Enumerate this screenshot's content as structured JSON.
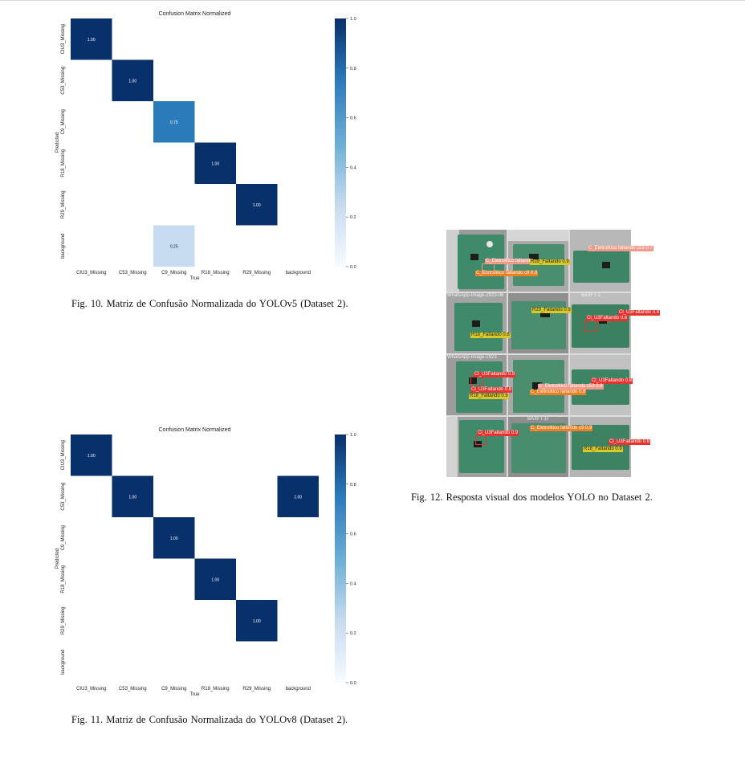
{
  "cm1": {
    "title": "Confusion Matrix Normalized",
    "xlabel": "True",
    "ylabel": "Predicted",
    "row_labels": [
      "CIU3_Missing",
      "C53_Missing",
      "C9_Missing",
      "R18_Missing",
      "R29_Missing",
      "background"
    ],
    "col_labels": [
      "CIU3_Missing",
      "C53_Missing",
      "C9_Missing",
      "R18_Missing",
      "R29_Missing",
      "background"
    ],
    "colorbar_ticks": [
      "0.0",
      "0.2",
      "0.4",
      "0.6",
      "0.8",
      "1.0"
    ],
    "cell_values": [
      {
        "row": 0,
        "col": 0,
        "text": "1.00",
        "value": 1.0
      },
      {
        "row": 1,
        "col": 1,
        "text": "1.00",
        "value": 1.0
      },
      {
        "row": 2,
        "col": 2,
        "text": "0.75",
        "value": 0.75
      },
      {
        "row": 3,
        "col": 3,
        "text": "1.00",
        "value": 1.0
      },
      {
        "row": 4,
        "col": 4,
        "text": "1.00",
        "value": 1.0
      },
      {
        "row": 5,
        "col": 2,
        "text": "0.25",
        "value": 0.25
      }
    ],
    "caption": "Fig. 10.  Matriz de Confusão Normalizada do YOLOv5 (Dataset 2)."
  },
  "cm2": {
    "title": "Confusion Matrix Normalized",
    "xlabel": "True",
    "ylabel": "Predicted",
    "row_labels": [
      "CIU3_Missing",
      "C53_Missing",
      "C9_Missing",
      "R18_Missing",
      "R29_Missing",
      "background"
    ],
    "col_labels": [
      "CIU3_Missing",
      "C53_Missing",
      "C9_Missing",
      "R18_Missing",
      "R29_Missing",
      "background"
    ],
    "colorbar_ticks": [
      "0.0",
      "0.2",
      "0.4",
      "0.6",
      "0.8",
      "1.0"
    ],
    "cell_values": [
      {
        "row": 0,
        "col": 0,
        "text": "1.00",
        "value": 1.0
      },
      {
        "row": 1,
        "col": 1,
        "text": "1.00",
        "value": 1.0
      },
      {
        "row": 1,
        "col": 5,
        "text": "1.00",
        "value": 1.0
      },
      {
        "row": 2,
        "col": 2,
        "text": "1.00",
        "value": 1.0
      },
      {
        "row": 3,
        "col": 3,
        "text": "1.00",
        "value": 1.0
      },
      {
        "row": 4,
        "col": 4,
        "text": "1.00",
        "value": 1.0
      }
    ],
    "caption": "Fig. 11.  Matriz de Confusão Normalizada do YOLOv8 (Dataset 2)."
  },
  "fig12": {
    "caption": "Fig. 12.  Resposta visual dos modelos YOLO no Dataset 2.",
    "tile_filenames": [
      "WhatsApp-Image-2023-06",
      "BAXFT-1",
      "WhatsApp-Image-2023",
      "BAXFT-1r"
    ],
    "labels": [
      {
        "text": "C_Eletrolitico faltando",
        "color": "salmon"
      },
      {
        "text": "C_Eletrolitico faltando c53 0.7",
        "color": "salmon"
      },
      {
        "text": "C_Eletrolitico faltando c9 0.9",
        "color": "orange"
      },
      {
        "text": "R29_Faltando 0.9",
        "color": "yellow"
      },
      {
        "text": "Cl_U3Faltando 0.8",
        "color": "red"
      },
      {
        "text": "R18_Faltando 0.8",
        "color": "yellow"
      },
      {
        "text": "Cl_U3Faltando 0.9",
        "color": "red"
      },
      {
        "text": "R29_Faltando 0.9",
        "color": "yellow"
      },
      {
        "text": "Cl_U3Faltando 0.9",
        "color": "red"
      },
      {
        "text": "R18_Faltando 0.9",
        "color": "yellow"
      },
      {
        "text": "Cl_U3Faltando 0.8",
        "color": "red"
      },
      {
        "text": "C_Eletrolitico faltando 0.8",
        "color": "orange"
      },
      {
        "text": "C_Eletrolitico faltando c9 0.9",
        "color": "orange"
      },
      {
        "text": "Cl_U3Faltando 0.8",
        "color": "red"
      },
      {
        "text": "C_Eletrolitico faltando c53 0.8",
        "color": "salmon"
      },
      {
        "text": "Cl_U3Faltando 0.9",
        "color": "red"
      },
      {
        "text": "Cl_U3Faltando 0.8",
        "color": "red"
      },
      {
        "text": "R18_Faltando 0.9",
        "color": "yellow"
      }
    ]
  },
  "colors": {
    "dark_blue": "#08306b",
    "mid_blue": "#2b7bbb",
    "light_blue": "#c6dbef"
  }
}
